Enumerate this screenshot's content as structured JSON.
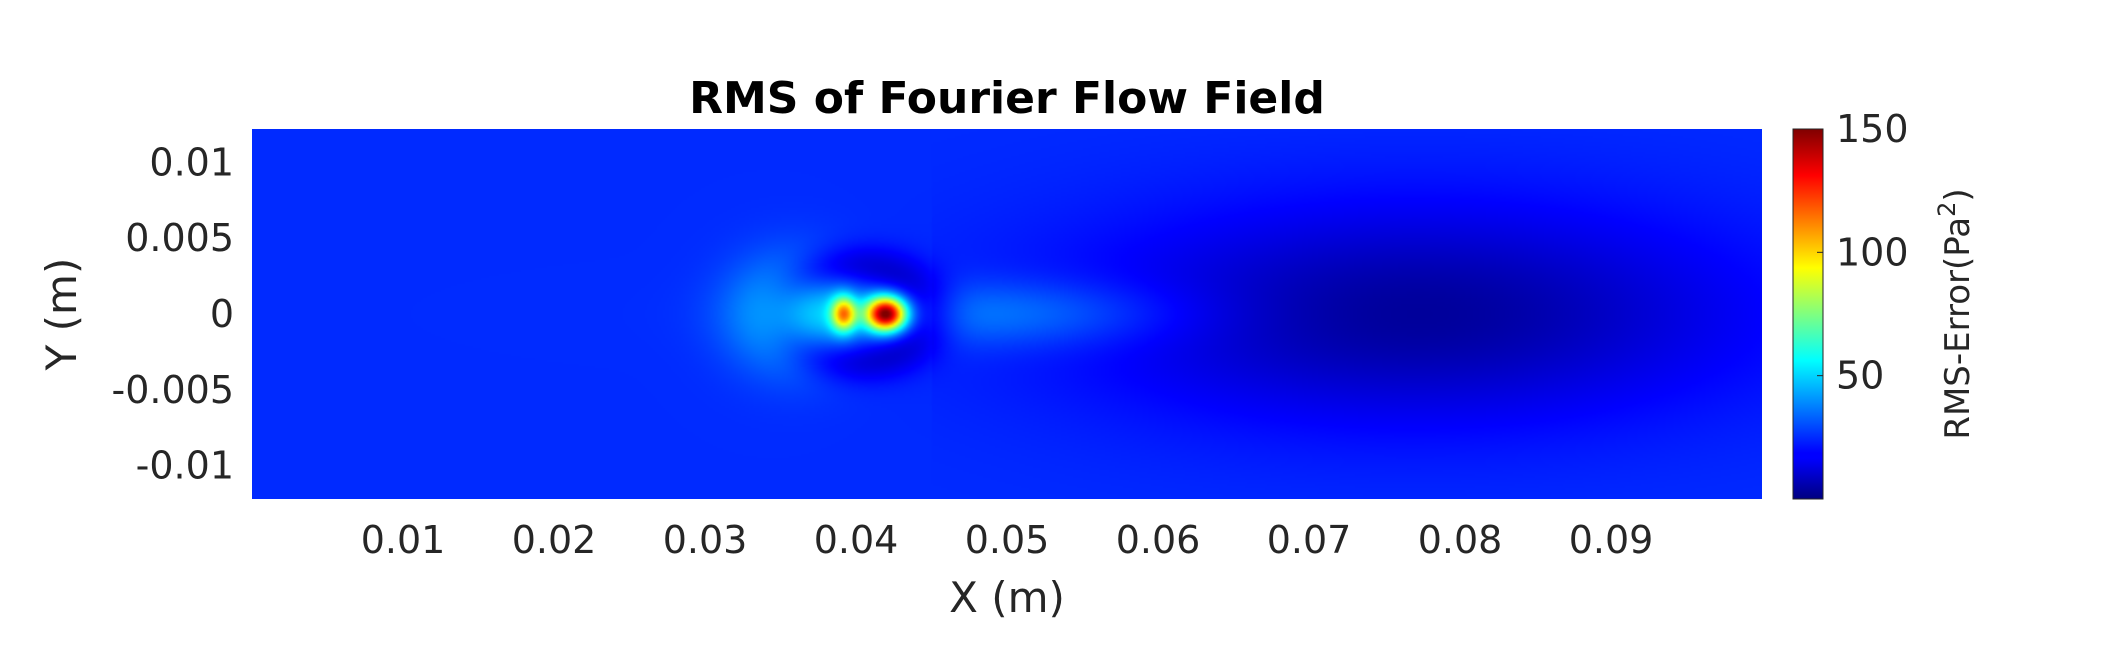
{
  "chart_data": {
    "type": "heatmap",
    "title": "RMS of Fourier Flow Field",
    "xlabel": "X (m)",
    "ylabel": "Y (m)",
    "xlim": [
      0,
      0.1
    ],
    "ylim": [
      -0.0122,
      0.0122
    ],
    "x_ticks": [
      "0.01",
      "0.02",
      "0.03",
      "0.04",
      "0.05",
      "0.06",
      "0.07",
      "0.08",
      "0.09"
    ],
    "y_ticks": [
      "0.01",
      "0.005",
      "0",
      "-0.005",
      "-0.01"
    ],
    "x_tick_values": [
      0.01,
      0.02,
      0.03,
      0.04,
      0.05,
      0.06,
      0.07,
      0.08,
      0.09
    ],
    "y_tick_values": [
      0.01,
      0.005,
      0,
      -0.005,
      -0.01
    ],
    "colormap": "jet",
    "colorbar": {
      "label": "RMS-Error(Pa",
      "label_superscript": "2",
      "label_suffix": ")",
      "range": [
        0,
        150
      ],
      "ticks": [
        "150",
        "100",
        "50"
      ],
      "tick_values": [
        150,
        100,
        50
      ]
    },
    "field_features": {
      "background_level": 25,
      "hotspot_peak": 145,
      "hotspot_x": 0.042,
      "hotspot_y": 0.0,
      "low_wake_level": 3,
      "low_wake_x_range": [
        0.06,
        0.097
      ]
    },
    "grid": false
  }
}
